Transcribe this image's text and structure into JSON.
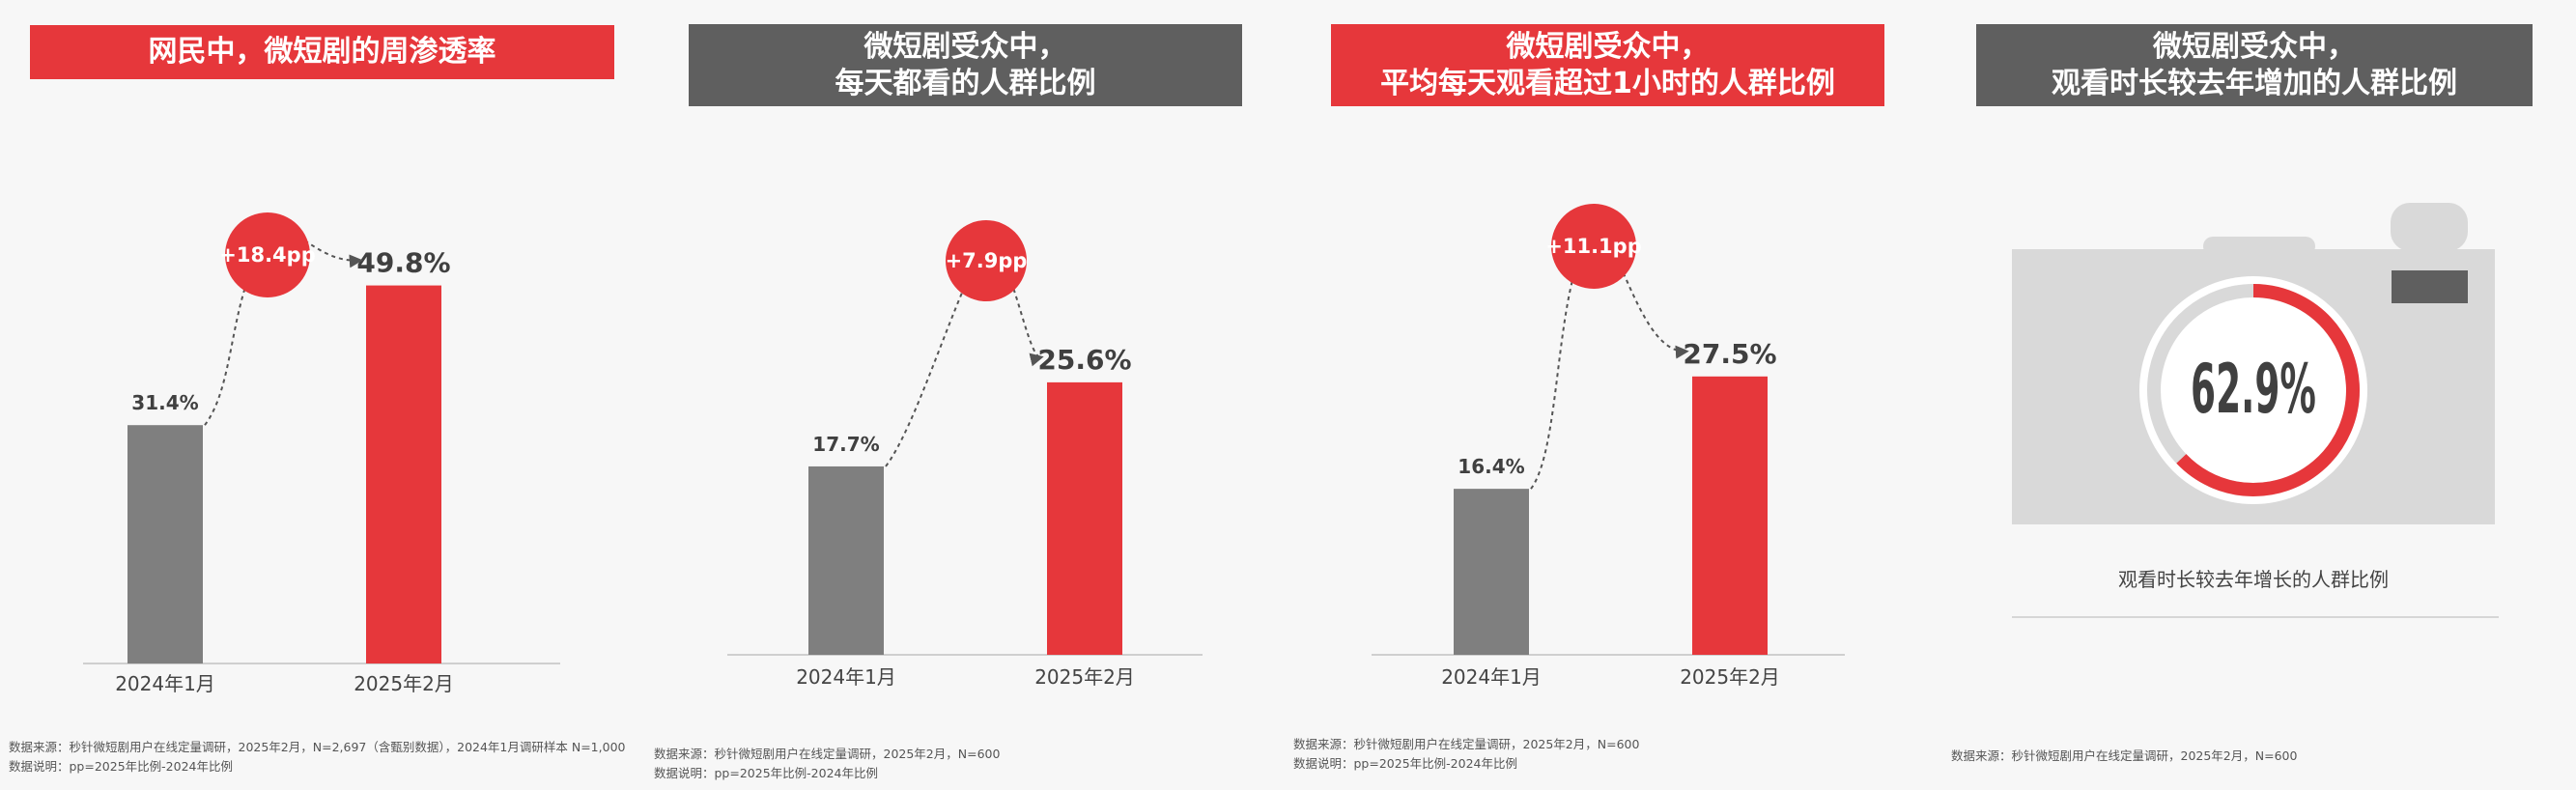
{
  "colors": {
    "red": "#e6373b",
    "gray": "#7f7f7f",
    "dark": "#5f5f5f",
    "light": "#d9d9d9"
  },
  "chart_data": [
    {
      "type": "bar",
      "title_lines": [
        "网民中，微短剧的周渗透率"
      ],
      "banner_color": "#e6373b",
      "categories": [
        "2024年1月",
        "2025年2月"
      ],
      "values": [
        31.4,
        49.8
      ],
      "value_labels": [
        "31.4%",
        "49.8%"
      ],
      "diff_label": "+18.4pp",
      "ylim": [
        0,
        60
      ],
      "notes": [
        "数据来源：秒针微短剧用户在线定量调研，2025年2月，N=2,697（含甄别数据），2024年1月调研样本 N=1,000",
        "数据说明：pp=2025年比例-2024年比例"
      ]
    },
    {
      "type": "bar",
      "title_lines": [
        "微短剧受众中，",
        "每天都看的人群比例"
      ],
      "banner_color": "#5f5f5f",
      "categories": [
        "2024年1月",
        "2025年2月"
      ],
      "values": [
        17.7,
        25.6
      ],
      "value_labels": [
        "17.7%",
        "25.6%"
      ],
      "diff_label": "+7.9pp",
      "ylim": [
        0,
        31
      ],
      "notes": [
        "数据来源：秒针微短剧用户在线定量调研，2025年2月，N=600",
        "数据说明：pp=2025年比例-2024年比例"
      ]
    },
    {
      "type": "bar",
      "title_lines": [
        "微短剧受众中，",
        "平均每天观看超过1小时的人群比例"
      ],
      "banner_color": "#e6373b",
      "categories": [
        "2024年1月",
        "2025年2月"
      ],
      "values": [
        16.4,
        27.5
      ],
      "value_labels": [
        "16.4%",
        "27.5%"
      ],
      "diff_label": "+11.1pp",
      "ylim": [
        0,
        32
      ],
      "notes": [
        "数据来源：秒针微短剧用户在线定量调研，2025年2月，N=600",
        "数据说明：pp=2025年比例-2024年比例"
      ]
    },
    {
      "type": "pie",
      "title_lines": [
        "微短剧受众中，",
        "观看时长较去年增加的人群比例"
      ],
      "banner_color": "#5f5f5f",
      "value": 62.9,
      "value_label": "62.9%",
      "caption": "观看时长较去年增长的人群比例",
      "notes": [
        "数据来源：秒针微短剧用户在线定量调研，2025年2月，N=600"
      ]
    }
  ]
}
